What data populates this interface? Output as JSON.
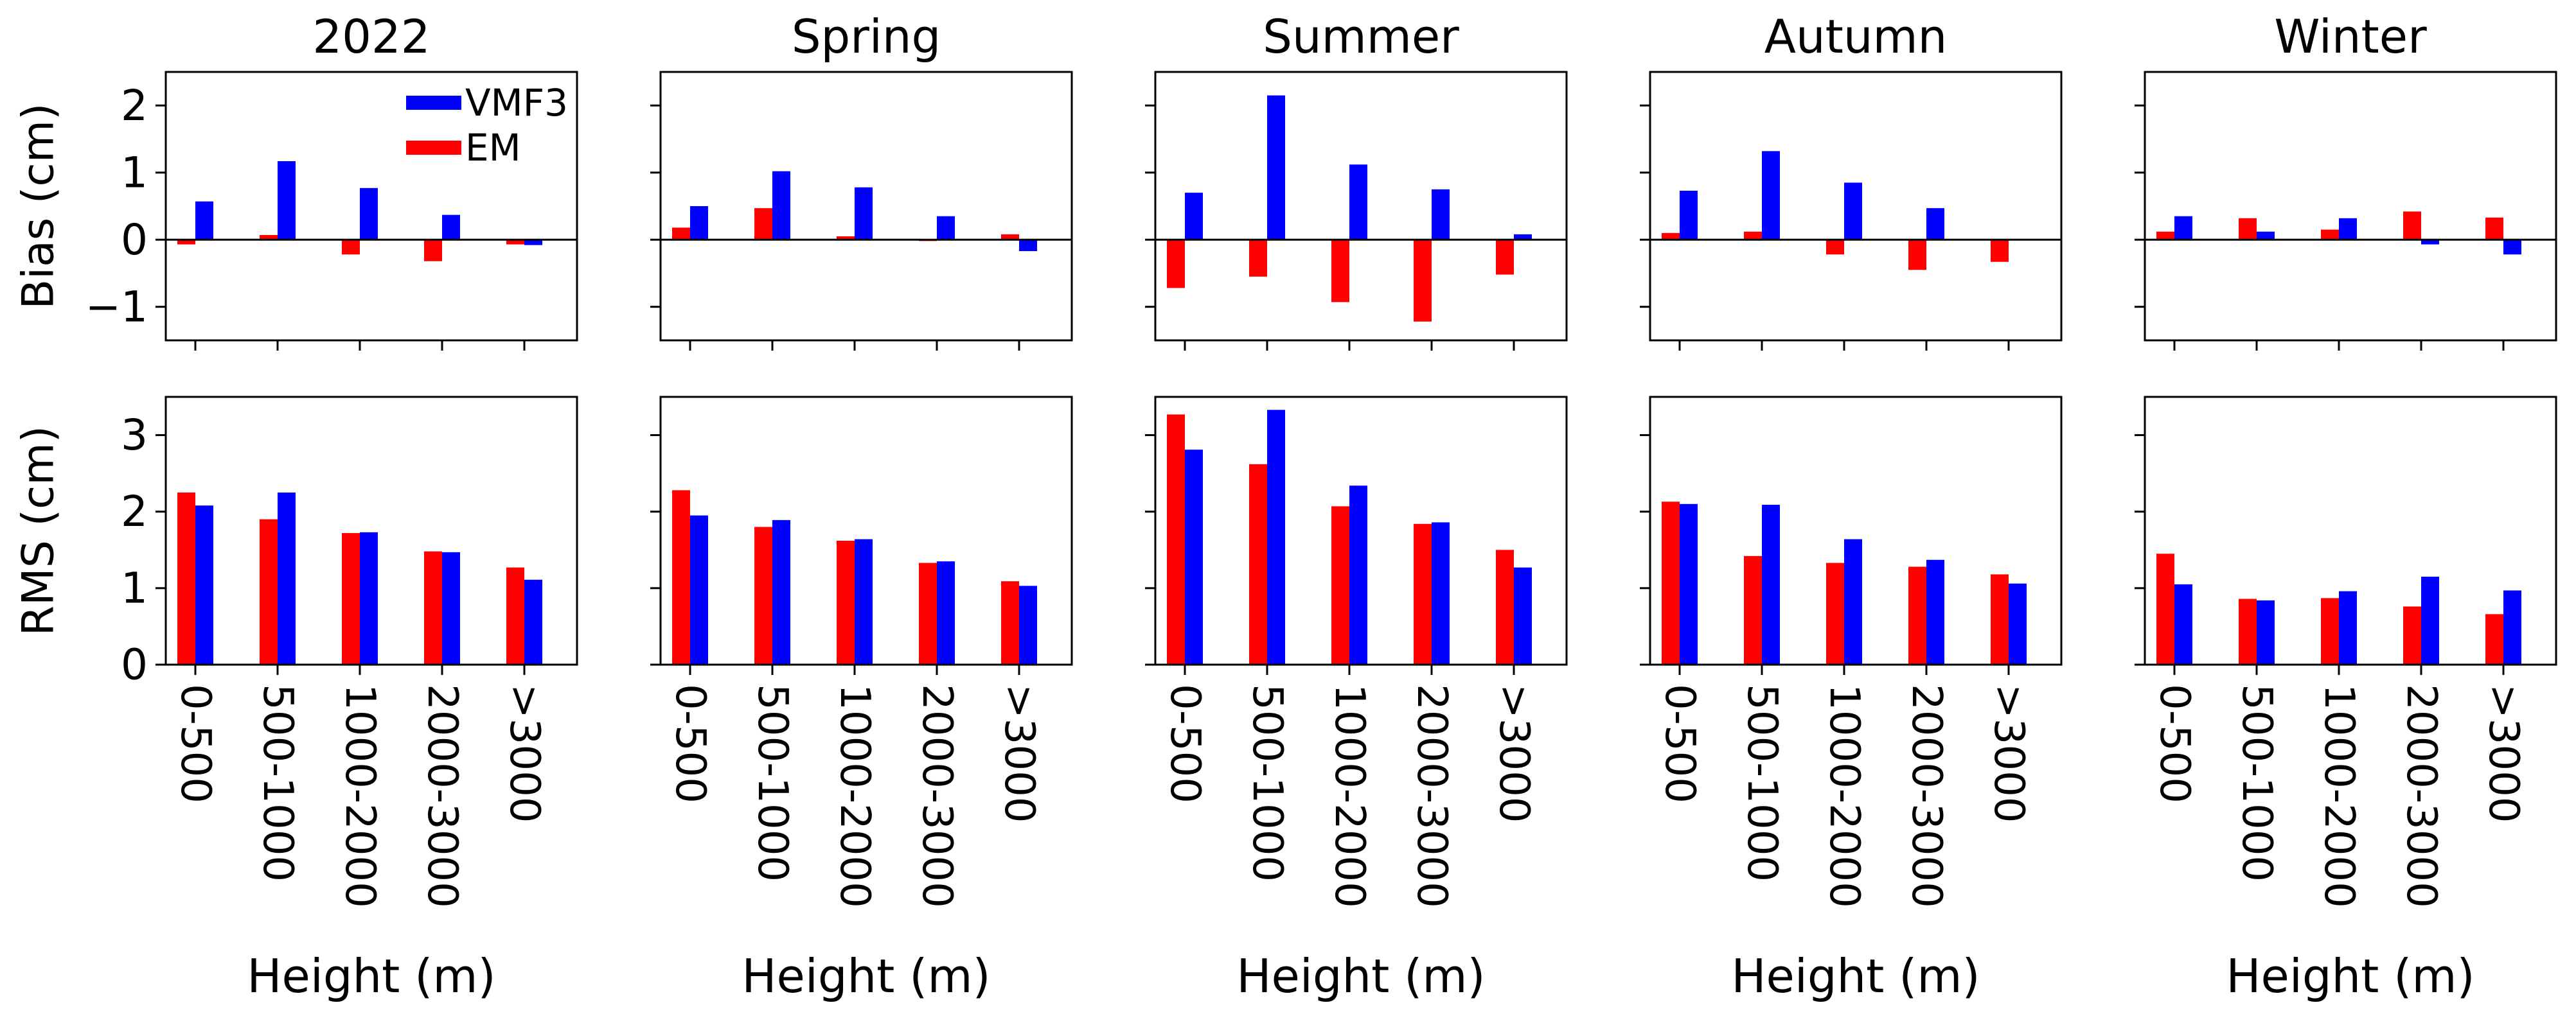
{
  "chart_data": {
    "type": "bar",
    "layout": "grid 2 rows x 5 columns, shared y-axes per row",
    "categories": [
      "0-500",
      "500-1000",
      "1000-2000",
      "2000-3000",
      ">3000"
    ],
    "xlabel": "Height (m)",
    "columns": [
      "2022",
      "Spring",
      "Summer",
      "Autumn",
      "Winter"
    ],
    "legend": {
      "position": "top-right of first panel",
      "entries": [
        "VMF3",
        "EM"
      ]
    },
    "colors": {
      "VMF3": "#0000ff",
      "EM": "#ff0000"
    },
    "rows": [
      {
        "metric": "Bias",
        "ylabel": "Bias (cm)",
        "ylim": [
          -1.5,
          2.5
        ],
        "yticks": [
          -1,
          0,
          1,
          2
        ],
        "ytick_labels": [
          "−1",
          "0",
          "1",
          "2"
        ],
        "zero_line": true,
        "panels": [
          {
            "title": "2022",
            "series": [
              {
                "name": "EM",
                "values": [
                  -0.07,
                  0.07,
                  -0.22,
                  -0.32,
                  -0.07
                ]
              },
              {
                "name": "VMF3",
                "values": [
                  0.57,
                  1.17,
                  0.77,
                  0.37,
                  -0.08
                ]
              }
            ]
          },
          {
            "title": "Spring",
            "series": [
              {
                "name": "EM",
                "values": [
                  0.18,
                  0.47,
                  0.05,
                  -0.02,
                  0.08
                ]
              },
              {
                "name": "VMF3",
                "values": [
                  0.5,
                  1.02,
                  0.78,
                  0.35,
                  -0.17
                ]
              }
            ]
          },
          {
            "title": "Summer",
            "series": [
              {
                "name": "EM",
                "values": [
                  -0.72,
                  -0.55,
                  -0.93,
                  -1.22,
                  -0.52
                ]
              },
              {
                "name": "VMF3",
                "values": [
                  0.7,
                  2.15,
                  1.12,
                  0.75,
                  0.08
                ]
              }
            ]
          },
          {
            "title": "Autumn",
            "series": [
              {
                "name": "EM",
                "values": [
                  0.1,
                  0.12,
                  -0.22,
                  -0.45,
                  -0.33
                ]
              },
              {
                "name": "VMF3",
                "values": [
                  0.73,
                  1.32,
                  0.85,
                  0.47,
                  0.0
                ]
              }
            ]
          },
          {
            "title": "Winter",
            "series": [
              {
                "name": "EM",
                "values": [
                  0.12,
                  0.32,
                  0.15,
                  0.42,
                  0.33
                ]
              },
              {
                "name": "VMF3",
                "values": [
                  0.35,
                  0.12,
                  0.32,
                  -0.07,
                  -0.22
                ]
              }
            ]
          }
        ]
      },
      {
        "metric": "RMS",
        "ylabel": "RMS (cm)",
        "ylim": [
          0,
          3.5
        ],
        "yticks": [
          0,
          1,
          2,
          3
        ],
        "ytick_labels": [
          "0",
          "1",
          "2",
          "3"
        ],
        "zero_line": false,
        "panels": [
          {
            "title": "2022",
            "series": [
              {
                "name": "EM",
                "values": [
                  2.25,
                  1.9,
                  1.72,
                  1.48,
                  1.27
                ]
              },
              {
                "name": "VMF3",
                "values": [
                  2.08,
                  2.25,
                  1.73,
                  1.47,
                  1.11
                ]
              }
            ]
          },
          {
            "title": "Spring",
            "series": [
              {
                "name": "EM",
                "values": [
                  2.28,
                  1.8,
                  1.62,
                  1.33,
                  1.09
                ]
              },
              {
                "name": "VMF3",
                "values": [
                  1.95,
                  1.89,
                  1.64,
                  1.35,
                  1.03
                ]
              }
            ]
          },
          {
            "title": "Summer",
            "series": [
              {
                "name": "EM",
                "values": [
                  3.27,
                  2.62,
                  2.07,
                  1.84,
                  1.5
                ]
              },
              {
                "name": "VMF3",
                "values": [
                  2.81,
                  3.33,
                  2.34,
                  1.86,
                  1.27
                ]
              }
            ]
          },
          {
            "title": "Autumn",
            "series": [
              {
                "name": "EM",
                "values": [
                  2.13,
                  1.42,
                  1.33,
                  1.28,
                  1.18
                ]
              },
              {
                "name": "VMF3",
                "values": [
                  2.1,
                  2.09,
                  1.64,
                  1.37,
                  1.06
                ]
              }
            ]
          },
          {
            "title": "Winter",
            "series": [
              {
                "name": "EM",
                "values": [
                  1.45,
                  0.86,
                  0.87,
                  0.76,
                  0.66
                ]
              },
              {
                "name": "VMF3",
                "values": [
                  1.05,
                  0.84,
                  0.96,
                  1.15,
                  0.97
                ]
              }
            ]
          }
        ]
      }
    ]
  }
}
